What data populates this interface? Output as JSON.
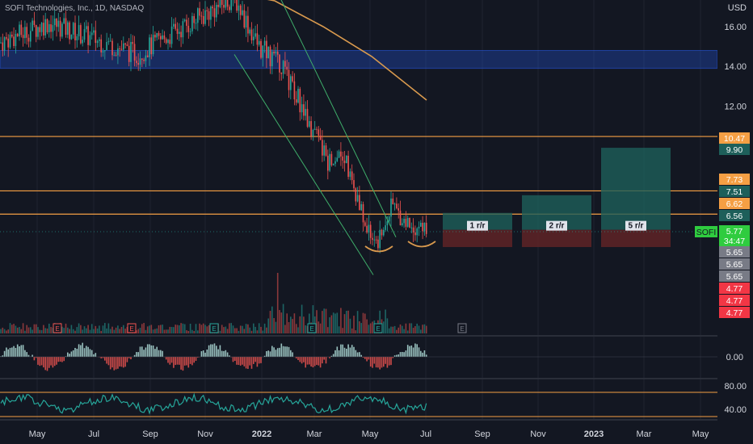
{
  "header": {
    "title": "SOFI Technologies, Inc., 1D, NASDAQ",
    "currency": "USD"
  },
  "colors": {
    "bg": "#131722",
    "up": "#26a69a",
    "down": "#ef5350",
    "ma": "#d99a4e",
    "channel": "#3fae6a",
    "support": "#f59f44",
    "zone": "#2962ff",
    "rsi": "#26a69a",
    "text": "#d1d4dc",
    "gain_zone": "#1e5f5a",
    "loss_zone": "#5b2226"
  },
  "chart_data": [
    {
      "type": "candlestick",
      "title": "SOFI Technologies, Inc., 1D, NASDAQ",
      "ylabel": "USD",
      "ylim": [
        3.4,
        17.8
      ],
      "y_ticks": [
        "16.00",
        "14.00",
        "12.00"
      ],
      "x_ticks": [
        "May",
        "Jul",
        "Sep",
        "Nov",
        "2022",
        "Mar",
        "May",
        "Jul",
        "Sep",
        "Nov",
        "2023",
        "Mar",
        "May"
      ],
      "price_path": [
        [
          "May",
          15.2
        ],
        [
          "Jul",
          16.2
        ],
        [
          "Sep",
          14.6
        ],
        [
          "Nov",
          17.5
        ],
        [
          "Dec",
          15.0
        ],
        [
          "2022",
          14.2
        ],
        [
          "Feb",
          11.5
        ],
        [
          "Mar",
          9.2
        ],
        [
          "Apr",
          9.8
        ],
        [
          "Apr",
          7.4
        ],
        [
          "May",
          5.5
        ],
        [
          "May",
          5.2
        ],
        [
          "Jun",
          7.0
        ],
        [
          "Jun",
          6.1
        ],
        [
          "Jul",
          5.77
        ]
      ],
      "moving_average": [
        [
          "Nov",
          17.7
        ],
        [
          "Jan",
          17.3
        ],
        [
          "Mar",
          16.0
        ],
        [
          "May",
          14.5
        ],
        [
          "Jul",
          12.3
        ]
      ],
      "horizontal_levels": [
        10.47,
        7.73,
        6.56
      ],
      "zone": {
        "from": 13.9,
        "to": 14.8
      },
      "channel": {
        "from": [
          "Nov",
          14.6
        ],
        "to": [
          "Jun",
          3.5
        ]
      },
      "price_labels": [
        {
          "value": "10.47",
          "color": "#f59f44"
        },
        {
          "value": "9.90",
          "color": "#1e5f5a"
        },
        {
          "value": "7.73",
          "color": "#f59f44"
        },
        {
          "value": "7.51",
          "color": "#1e5f5a"
        },
        {
          "value": "6.62",
          "color": "#f59f44"
        },
        {
          "value": "6.56",
          "color": "#1e5f5a"
        },
        {
          "value": "5.77",
          "color": "#2fcc3f"
        },
        {
          "value": "34:47",
          "color": "#2fcc3f"
        },
        {
          "value": "5.65",
          "color": "#787b86"
        },
        {
          "value": "5.65",
          "color": "#787b86"
        },
        {
          "value": "5.65",
          "color": "#787b86"
        },
        {
          "value": "4.77",
          "color": "#f23645"
        },
        {
          "value": "4.77",
          "color": "#f23645"
        },
        {
          "value": "4.77",
          "color": "#f23645"
        }
      ],
      "symbol_tag": "SOFI",
      "risk_reward": [
        {
          "label": "1 r/r",
          "entry": 5.77,
          "target": 6.62,
          "stop": 4.9
        },
        {
          "label": "2 r/r",
          "entry": 5.77,
          "target": 7.51,
          "stop": 4.9
        },
        {
          "label": "5 r/r",
          "entry": 5.77,
          "target": 9.9,
          "stop": 4.9
        }
      ],
      "earnings_markers": [
        "E",
        "E",
        "E",
        "E",
        "E",
        "E"
      ]
    },
    {
      "type": "bar",
      "title": "",
      "y_ticks": [
        "0.00"
      ],
      "ylim": [
        -1,
        1
      ]
    },
    {
      "type": "line",
      "title": "",
      "y_ticks": [
        "80.00",
        "40.00"
      ],
      "ylim": [
        30,
        90
      ],
      "levels": [
        70,
        30
      ]
    }
  ]
}
